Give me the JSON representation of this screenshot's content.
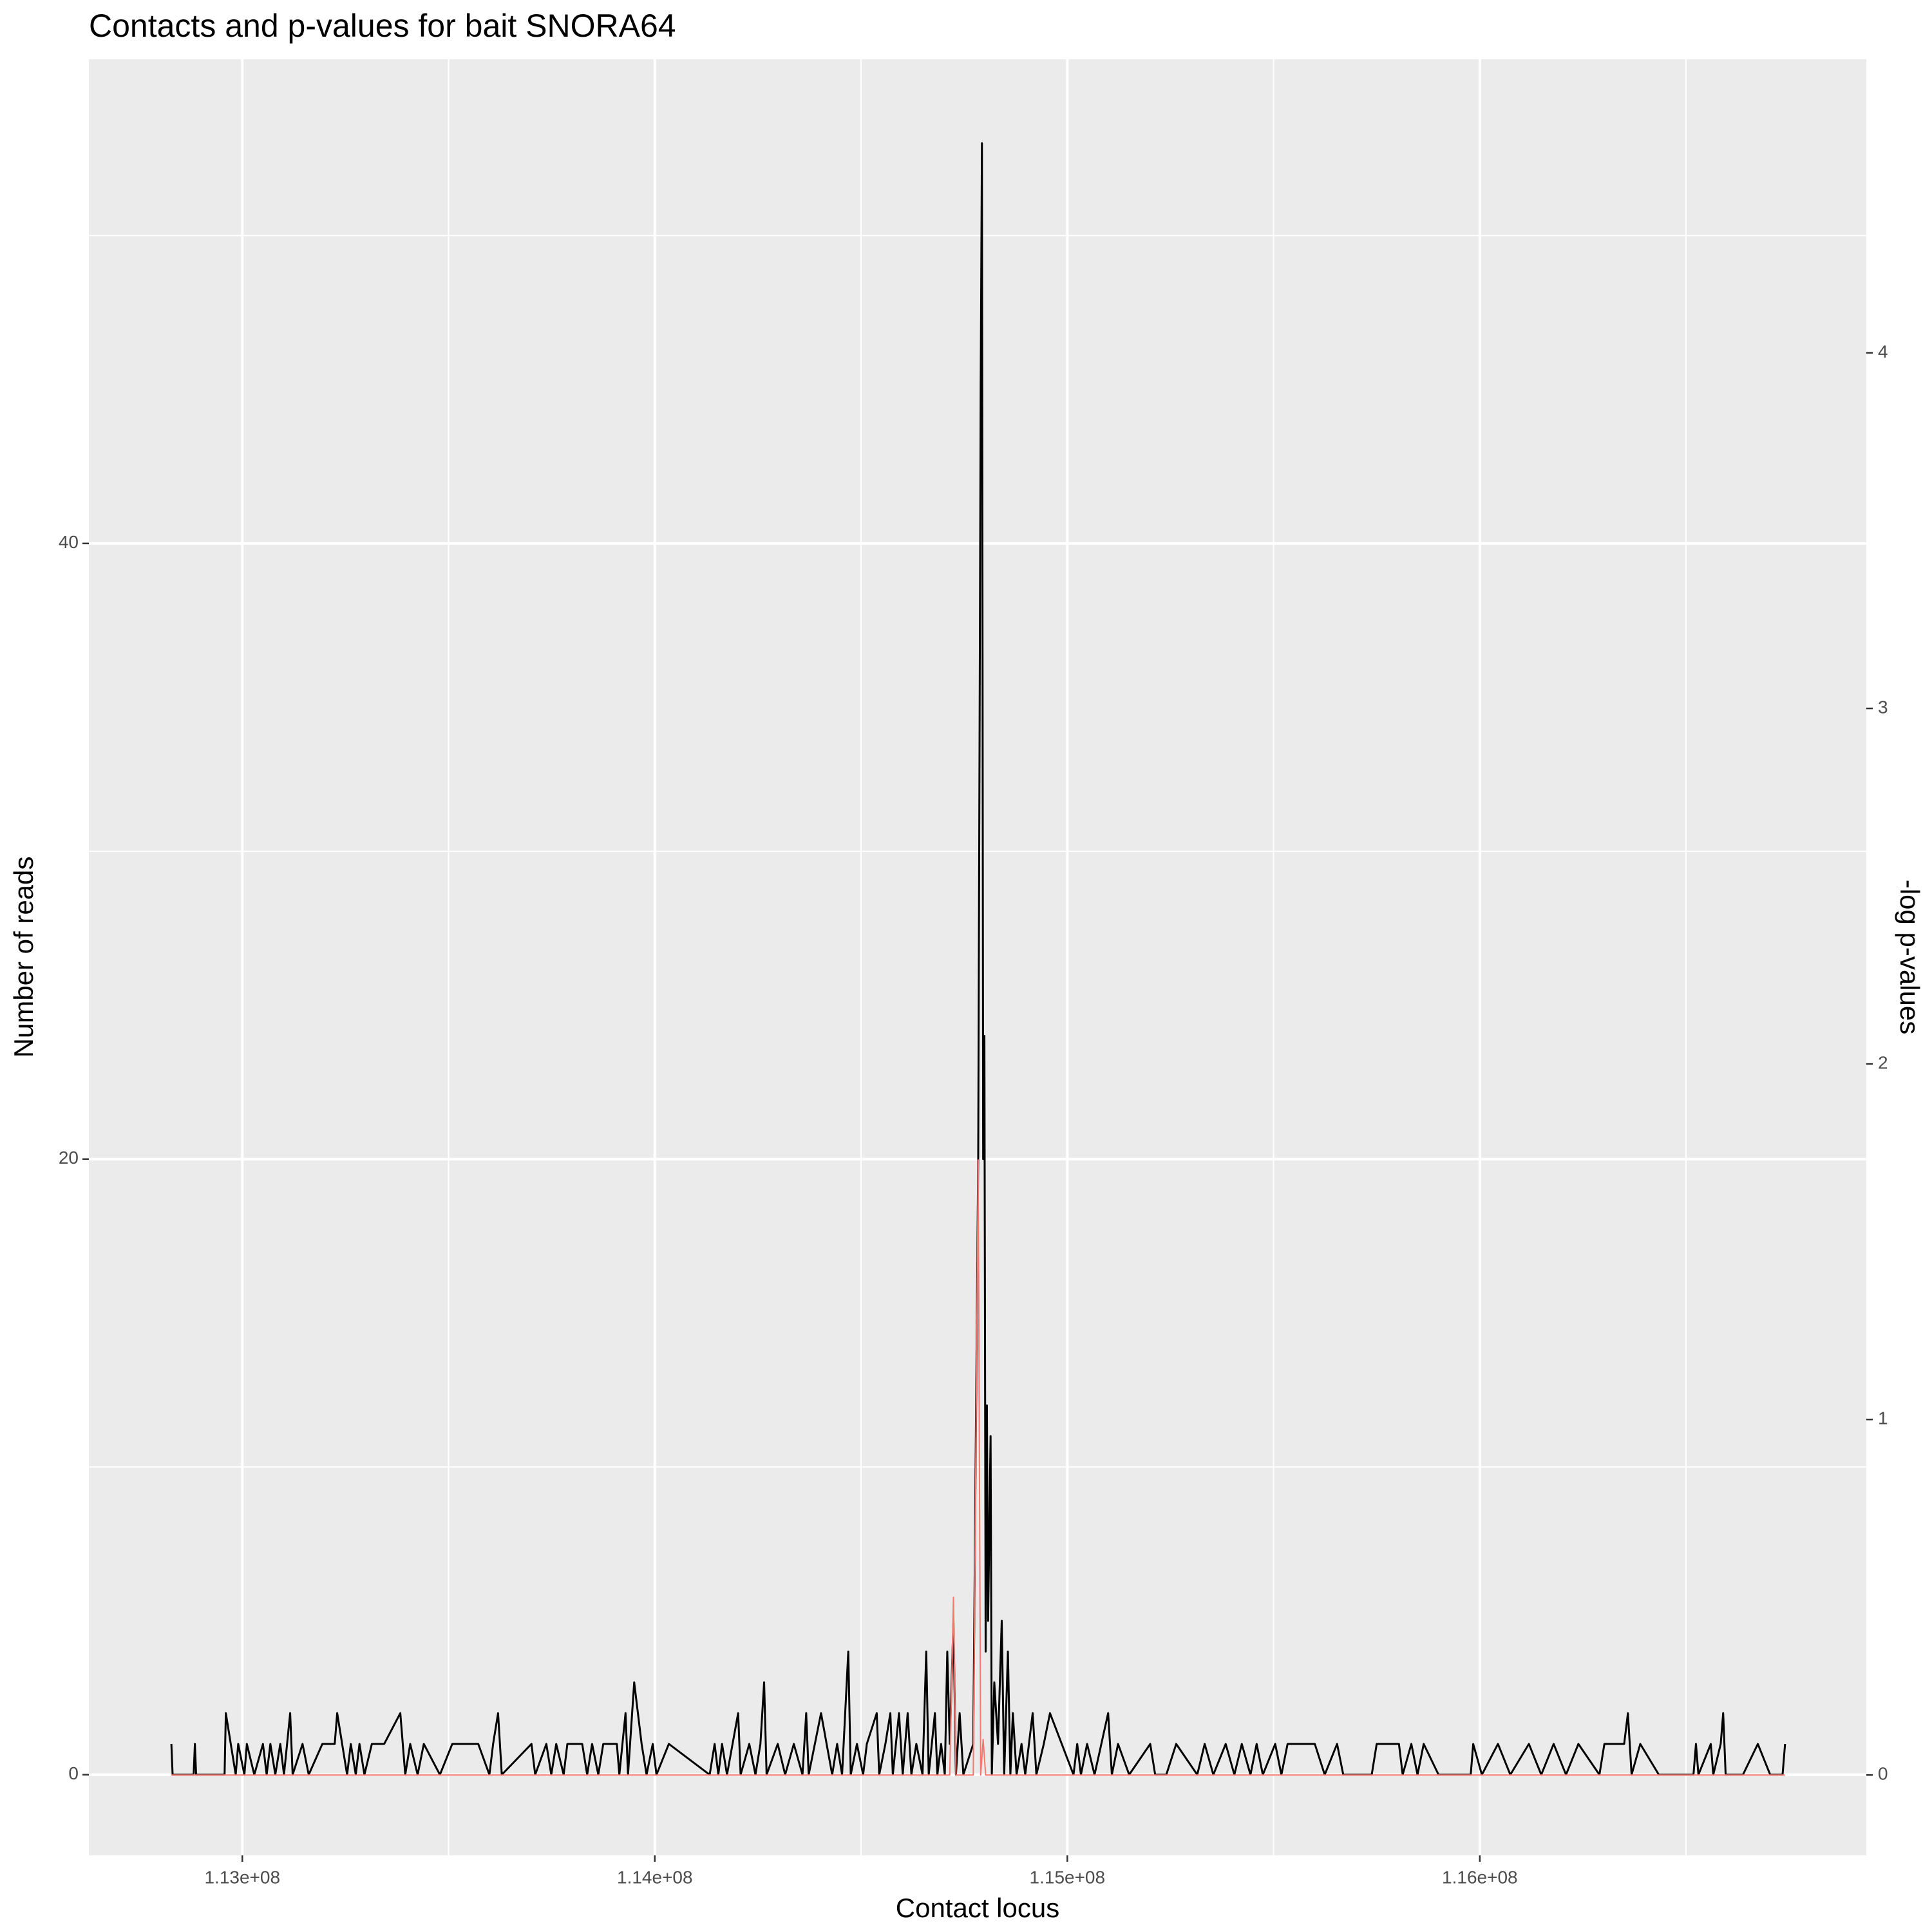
{
  "chart_data": {
    "type": "line",
    "title": "Contacts and p-values for bait SNORA64",
    "x_label": "Contact locus",
    "y_label": "Number of reads",
    "y2_label": "-log p-values",
    "xlim": [
      112628000,
      116937000
    ],
    "xticks": [
      {
        "value": 113000000,
        "label": "1.13e+08"
      },
      {
        "value": 114000000,
        "label": "1.14e+08"
      },
      {
        "value": 115000000,
        "label": "1.15e+08"
      },
      {
        "value": 116000000,
        "label": "1.16e+08"
      }
    ],
    "ylim": [
      -2.62,
      55.73
    ],
    "yticks": [
      0,
      20,
      40
    ],
    "y2lim": [
      -0.226,
      4.826
    ],
    "y2ticks": [
      0,
      1,
      2,
      3,
      4
    ],
    "grid": true,
    "series": [
      {
        "color": "#000000",
        "axis": "y",
        "x": [
          112828000,
          112831000,
          112882000,
          112885000,
          112888000,
          112957000,
          112960000,
          112984000,
          112990000,
          113005000,
          113011000,
          113029000,
          113050000,
          113059000,
          113068000,
          113080000,
          113092000,
          113101000,
          113116000,
          113122000,
          113146000,
          113161000,
          113194000,
          113224000,
          113230000,
          113254000,
          113263000,
          113275000,
          113284000,
          113296000,
          113314000,
          113344000,
          113383000,
          113395000,
          113407000,
          113425000,
          113440000,
          113479000,
          113509000,
          113572000,
          113599000,
          113608000,
          113620000,
          113629000,
          113701000,
          113710000,
          113737000,
          113749000,
          113761000,
          113779000,
          113788000,
          113824000,
          113836000,
          113848000,
          113863000,
          113875000,
          113908000,
          113914000,
          113929000,
          113935000,
          113950000,
          113968000,
          113980000,
          113995000,
          114004000,
          114034000,
          114133000,
          114145000,
          114154000,
          114163000,
          114175000,
          114202000,
          114208000,
          114229000,
          114244000,
          114256000,
          114265000,
          114271000,
          114298000,
          114316000,
          114337000,
          114358000,
          114367000,
          114373000,
          114403000,
          114430000,
          114442000,
          114454000,
          114469000,
          114475000,
          114490000,
          114505000,
          114514000,
          114538000,
          114544000,
          114559000,
          114571000,
          114577000,
          114592000,
          114601000,
          114613000,
          114622000,
          114634000,
          114649000,
          114658000,
          114664000,
          114679000,
          114685000,
          114694000,
          114703000,
          114709000,
          114715000,
          114724000,
          114730000,
          114739000,
          114748000,
          114772000,
          114784000,
          114790000,
          114793000,
          114796000,
          114799000,
          114802000,
          114805000,
          114808000,
          114814000,
          114817000,
          114823000,
          114832000,
          114841000,
          114847000,
          114856000,
          114862000,
          114868000,
          114877000,
          114889000,
          114898000,
          114916000,
          114925000,
          114943000,
          114958000,
          115015000,
          115024000,
          115033000,
          115048000,
          115066000,
          115099000,
          115108000,
          115123000,
          115150000,
          115201000,
          115213000,
          115240000,
          115264000,
          115315000,
          115333000,
          115354000,
          115384000,
          115405000,
          115423000,
          115444000,
          115459000,
          115474000,
          115504000,
          115519000,
          115534000,
          115600000,
          115624000,
          115654000,
          115669000,
          115738000,
          115750000,
          115804000,
          115813000,
          115834000,
          115849000,
          115864000,
          115900000,
          115978000,
          115984000,
          116005000,
          116044000,
          116074000,
          116119000,
          116149000,
          116179000,
          116209000,
          116239000,
          116290000,
          116302000,
          116350000,
          116359000,
          116368000,
          116389000,
          116434000,
          116518000,
          116524000,
          116530000,
          116560000,
          116566000,
          116584000,
          116590000,
          116596000,
          116638000,
          116674000,
          116704000,
          116734000,
          116740000
        ],
        "values": [
          1,
          0,
          0,
          1,
          0,
          0,
          2,
          0,
          1,
          0,
          1,
          0,
          1,
          0,
          1,
          0,
          1,
          0,
          2,
          0,
          1,
          0,
          1,
          1,
          2,
          0,
          1,
          0,
          1,
          0,
          1,
          1,
          2,
          0,
          1,
          0,
          1,
          0,
          1,
          1,
          0,
          1,
          2,
          0,
          1,
          0,
          1,
          0,
          1,
          0,
          1,
          1,
          0,
          1,
          0,
          1,
          1,
          0,
          2,
          0,
          3,
          1,
          0,
          1,
          0,
          1,
          0,
          1,
          0,
          1,
          0,
          2,
          0,
          1,
          0,
          1,
          3,
          0,
          1,
          0,
          1,
          0,
          2,
          0,
          2,
          0,
          1,
          0,
          4,
          0,
          1,
          0,
          1,
          2,
          0,
          1,
          2,
          0,
          2,
          0,
          2,
          0,
          1,
          0,
          4,
          0,
          2,
          0,
          1,
          0,
          4,
          1,
          5,
          0,
          2,
          0,
          1,
          20,
          45,
          53,
          20,
          24,
          4,
          12,
          5,
          11,
          0,
          3,
          1,
          5,
          0,
          4,
          0,
          2,
          0,
          1,
          0,
          2,
          0,
          1,
          2,
          0,
          1,
          0,
          1,
          0,
          2,
          0,
          1,
          0,
          1,
          0,
          0,
          1,
          0,
          1,
          0,
          1,
          0,
          1,
          0,
          1,
          0,
          1,
          0,
          1,
          1,
          0,
          1,
          0,
          0,
          1,
          1,
          0,
          1,
          0,
          1,
          0,
          0,
          1,
          0,
          1,
          0,
          1,
          0,
          1,
          0,
          1,
          0,
          1,
          1,
          2,
          0,
          1,
          0,
          0,
          1,
          0,
          1,
          0,
          1,
          2,
          0,
          0,
          1,
          0,
          0,
          1
        ]
      },
      {
        "color": "#f8766d",
        "axis": "y2",
        "x": [
          112828000,
          114715000,
          114724000,
          114730000,
          114772000,
          114784000,
          114790000,
          114796000,
          114802000,
          116740000
        ],
        "values": [
          0,
          0,
          0.5,
          0,
          0,
          1.73,
          0,
          0.1,
          0,
          0
        ]
      }
    ]
  }
}
